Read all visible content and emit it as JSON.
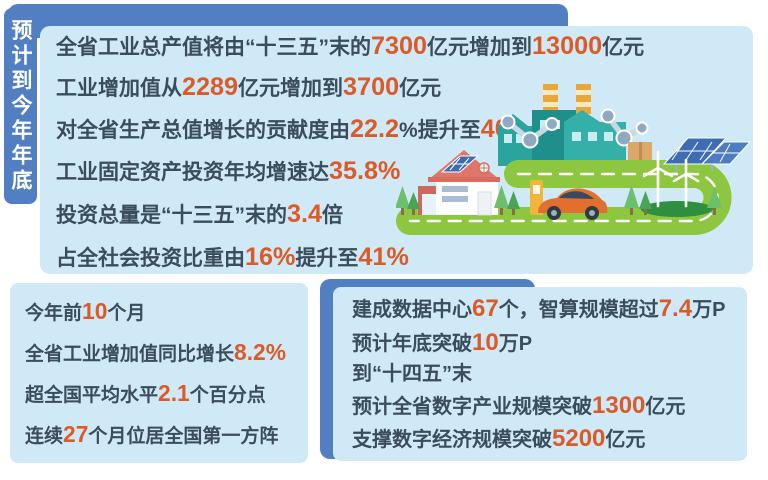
{
  "banner": {
    "text": "预计到今年年底"
  },
  "colors": {
    "panel_bg": "#cfe9f6",
    "banner_blue": "#527fc1",
    "text_dark": "#3b4c5c",
    "number_red": "#dc5a28",
    "road_green": "#8dc63f",
    "factory_teal": "#2ba39e",
    "car_orange": "#e1702e"
  },
  "top_panel": {
    "lines": [
      [
        {
          "t": "全省工业总产值将由“十三五”末的"
        },
        {
          "t": "7300",
          "h": 1
        },
        {
          "t": "亿元增加到"
        },
        {
          "t": "13000",
          "h": 1
        },
        {
          "t": "亿元"
        }
      ],
      [
        {
          "t": "工业增加值从"
        },
        {
          "t": "2289",
          "h": 1
        },
        {
          "t": "亿元增加到"
        },
        {
          "t": "3700",
          "h": 1
        },
        {
          "t": "亿元"
        }
      ],
      [
        {
          "t": "对全省生产总值增长的贡献度由"
        },
        {
          "t": "22.2",
          "h": 1
        },
        {
          "t": "%"
        },
        {
          "t": "提升至"
        },
        {
          "t": "40",
          "h": 1
        },
        {
          "t": "%"
        }
      ],
      [
        {
          "t": "工业固定资产投资年均增速达"
        },
        {
          "t": "35.8%",
          "h": 1
        }
      ],
      [
        {
          "t": "投资总量是“十三五”末的"
        },
        {
          "t": "3.4",
          "h": 1
        },
        {
          "t": "倍"
        }
      ],
      [
        {
          "t": "占全社会投资比重由"
        },
        {
          "t": "16%",
          "h": 1
        },
        {
          "t": "提升至"
        },
        {
          "t": "41%",
          "h": 1
        }
      ]
    ]
  },
  "bottom_left_panel": {
    "lines": [
      [
        {
          "t": "今年前"
        },
        {
          "t": "10",
          "h": 1
        },
        {
          "t": "个月"
        }
      ],
      [
        {
          "t": "全省工业增加值同比增长"
        },
        {
          "t": "8.2%",
          "h": 1
        }
      ],
      [
        {
          "t": "超全国平均水平"
        },
        {
          "t": "2.1",
          "h": 1
        },
        {
          "t": "个百分点"
        }
      ],
      [
        {
          "t": "连续"
        },
        {
          "t": "27",
          "h": 1
        },
        {
          "t": "个月位居全国第一方阵"
        }
      ]
    ]
  },
  "bottom_right_panel": {
    "lines": [
      [
        {
          "t": "建成数据中心"
        },
        {
          "t": "67",
          "h": 1
        },
        {
          "t": "个，智算规模超过"
        },
        {
          "t": "7.4",
          "h": 1
        },
        {
          "t": "万P"
        }
      ],
      [
        {
          "t": "预计年底突破"
        },
        {
          "t": "10",
          "h": 1
        },
        {
          "t": "万P"
        }
      ],
      [
        {
          "t": "到“十四五”末"
        }
      ],
      [
        {
          "t": "预计全省数字产业规模突破"
        },
        {
          "t": "1300",
          "h": 1
        },
        {
          "t": "亿元"
        }
      ],
      [
        {
          "t": "支撑数字经济规模突破"
        },
        {
          "t": "5200",
          "h": 1
        },
        {
          "t": "亿元"
        }
      ]
    ]
  },
  "illustration": {
    "items": [
      "factory-icon",
      "robot-arm-icon",
      "chimney-icon",
      "cargo-box-icon",
      "road-loop-icon",
      "house-with-solar-roof-icon",
      "tree-icon",
      "ev-car-icon",
      "charging-station-icon",
      "solar-panel-icon",
      "wind-turbine-icon",
      "grass-mound-icon"
    ]
  }
}
